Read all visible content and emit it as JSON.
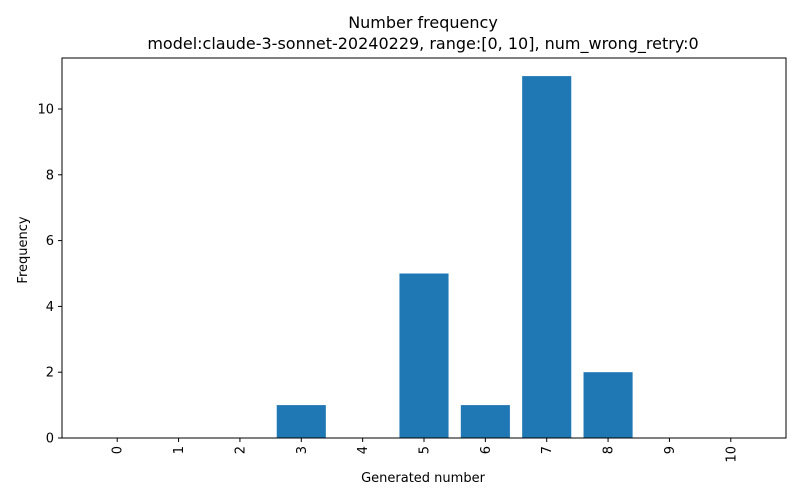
{
  "chart_data": {
    "type": "bar",
    "title": "Number frequency",
    "subtitle": "model:claude-3-sonnet-20240229, range:[0, 10], num_wrong_retry:0",
    "xlabel": "Generated number",
    "ylabel": "Frequency",
    "categories": [
      "0",
      "1",
      "2",
      "3",
      "4",
      "5",
      "6",
      "7",
      "8",
      "9",
      "10"
    ],
    "values": [
      0,
      0,
      0,
      1,
      0,
      5,
      1,
      11,
      2,
      0,
      0
    ],
    "ylim": [
      0,
      11.55
    ],
    "yticks": [
      0,
      2,
      4,
      6,
      8,
      10
    ],
    "xtick_rotation": 90,
    "bar_color": "#1f77b4",
    "grid": false,
    "legend": "none"
  }
}
